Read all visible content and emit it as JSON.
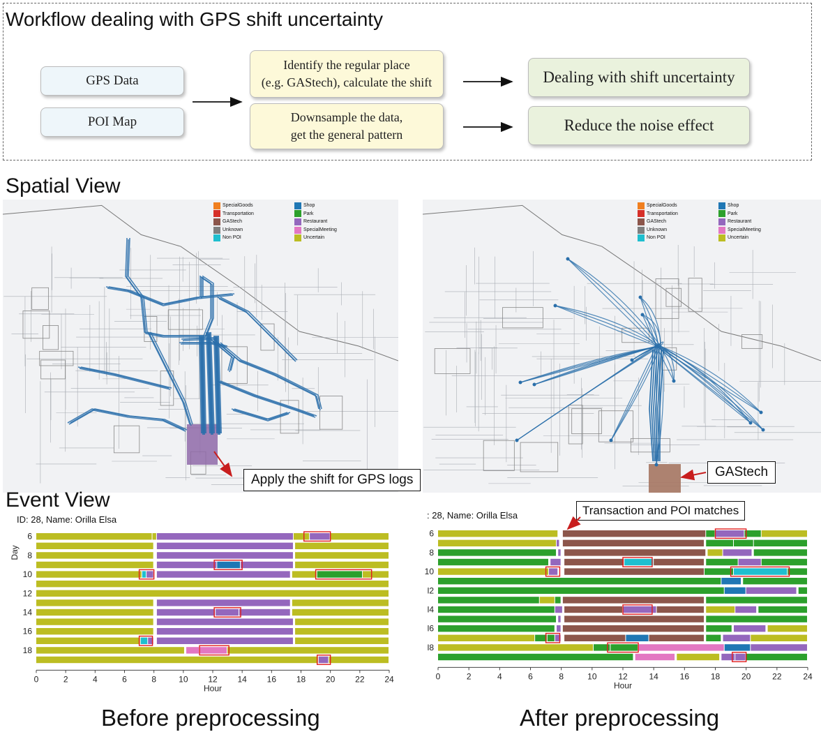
{
  "workflow": {
    "title": "Workflow dealing with GPS shift uncertainty",
    "inputs": [
      "GPS Data",
      "POI Map"
    ],
    "steps": [
      {
        "line1": "Identify the regular place",
        "line2": "(e.g. GAStech), calculate the shift"
      },
      {
        "line1": "Downsample the data,",
        "line2": "get the general pattern"
      }
    ],
    "outputs": [
      "Dealing with shift uncertainty",
      "Reduce the noise effect"
    ]
  },
  "spatial": {
    "title": "Spatial View",
    "legend": {
      "col1": [
        "SpecialGoods",
        "Transportation",
        "GAStech",
        "Unknown",
        "Non POI"
      ],
      "col2": [
        "Shop",
        "Park",
        "Restaurant",
        "SpecialMeeting",
        "Uncertain"
      ],
      "col1_colors": [
        "#f07f1f",
        "#d62f28",
        "#8c564b",
        "#7f7f7f",
        "#1fbfcf"
      ],
      "col2_colors": [
        "#1f77b4",
        "#2ca02c",
        "#9467bd",
        "#e377c2",
        "#bcbd22"
      ]
    },
    "callout_left": "Apply the shift for GPS logs",
    "callout_right": "GAStech"
  },
  "event": {
    "title": "Event View",
    "id_left": "ID: 28, Name: Orilla Elsa",
    "id_right": ": 28, Name: Orilla Elsa",
    "annotation": "Transaction and POI matches",
    "ylabel": "Day",
    "xlabel": "Hour",
    "x_ticks": [
      "0",
      "2",
      "4",
      "6",
      "8",
      "10",
      "12",
      "14",
      "16",
      "18",
      "20",
      "22",
      "24"
    ],
    "y_ticks_left": [
      "6",
      "8",
      "10",
      "12",
      "14",
      "16",
      "18"
    ],
    "y_ticks_right": [
      "6",
      "8",
      "10",
      "l2",
      "l4",
      "l6",
      "l8"
    ],
    "caption_left": "Before preprocessing",
    "caption_right": "After preprocessing"
  },
  "chart_data": [
    {
      "type": "bar",
      "title": "Before preprocessing",
      "xlabel": "Hour",
      "ylabel": "Day",
      "xlim": [
        0,
        24
      ],
      "colors": {
        "U": "#bcbd22",
        "R": "#9467bd",
        "G": "#2ca02c",
        "S": "#1f77b4",
        "T": "#1fbfcf",
        "M": "#e377c2",
        "A": "#8c564b"
      },
      "days": [
        {
          "day": 6,
          "segments": [
            [
              0,
              7.9,
              "U"
            ],
            [
              7.9,
              8.2,
              "U"
            ],
            [
              8.2,
              17.5,
              "R"
            ],
            [
              17.5,
              18.6,
              "U"
            ],
            [
              18.6,
              20,
              "R"
            ],
            [
              20,
              24,
              "U"
            ]
          ],
          "highlights": [
            [
              18.2,
              20
            ]
          ]
        },
        {
          "day": 7,
          "segments": [
            [
              0,
              8,
              "U"
            ],
            [
              8.2,
              17.5,
              "R"
            ],
            [
              17.6,
              24,
              "U"
            ]
          ],
          "highlights": []
        },
        {
          "day": 8,
          "segments": [
            [
              0,
              8,
              "U"
            ],
            [
              8.2,
              17.5,
              "R"
            ],
            [
              17.6,
              24,
              "U"
            ]
          ],
          "highlights": []
        },
        {
          "day": 9,
          "segments": [
            [
              0,
              8,
              "U"
            ],
            [
              8.2,
              12.3,
              "R"
            ],
            [
              12.3,
              13.9,
              "S"
            ],
            [
              13.9,
              17.5,
              "R"
            ],
            [
              17.6,
              24,
              "U"
            ]
          ],
          "highlights": [
            [
              12.1,
              14
            ]
          ]
        },
        {
          "day": 10,
          "segments": [
            [
              0,
              7.2,
              "U"
            ],
            [
              7.2,
              7.5,
              "T"
            ],
            [
              7.5,
              8,
              "R"
            ],
            [
              8.2,
              17.3,
              "R"
            ],
            [
              17.4,
              19.1,
              "U"
            ],
            [
              19.1,
              22.2,
              "G"
            ],
            [
              22.2,
              24,
              "U"
            ]
          ],
          "highlights": [
            [
              7,
              8
            ],
            [
              19,
              22.8
            ]
          ]
        },
        {
          "day": 11,
          "segments": [
            [
              0,
              24,
              "U"
            ]
          ],
          "highlights": []
        },
        {
          "day": 12,
          "segments": [
            [
              0,
              24,
              "U"
            ]
          ],
          "highlights": []
        },
        {
          "day": 13,
          "segments": [
            [
              0,
              8,
              "U"
            ],
            [
              8.2,
              17.3,
              "R"
            ],
            [
              17.4,
              24,
              "U"
            ]
          ],
          "highlights": []
        },
        {
          "day": 14,
          "segments": [
            [
              0,
              8,
              "U"
            ],
            [
              8.2,
              12.2,
              "R"
            ],
            [
              12.2,
              13.8,
              "R"
            ],
            [
              13.8,
              17.3,
              "R"
            ],
            [
              17.4,
              24,
              "U"
            ]
          ],
          "highlights": [
            [
              12.1,
              13.9
            ]
          ]
        },
        {
          "day": 15,
          "segments": [
            [
              0,
              8,
              "U"
            ],
            [
              8.2,
              17.5,
              "R"
            ],
            [
              17.6,
              24,
              "U"
            ]
          ],
          "highlights": []
        },
        {
          "day": 16,
          "segments": [
            [
              0,
              8,
              "U"
            ],
            [
              8.2,
              17.5,
              "R"
            ],
            [
              17.6,
              24,
              "U"
            ]
          ],
          "highlights": []
        },
        {
          "day": 17,
          "segments": [
            [
              0,
              7.1,
              "U"
            ],
            [
              7.1,
              7.6,
              "T"
            ],
            [
              7.6,
              8,
              "R"
            ],
            [
              8.2,
              17.5,
              "R"
            ],
            [
              17.6,
              24,
              "U"
            ]
          ],
          "highlights": [
            [
              7,
              7.9
            ]
          ]
        },
        {
          "day": 18,
          "segments": [
            [
              0,
              10.1,
              "U"
            ],
            [
              10.2,
              11.1,
              "M"
            ],
            [
              11.1,
              13,
              "M"
            ],
            [
              13,
              24,
              "U"
            ]
          ],
          "highlights": [
            [
              11.1,
              13.1
            ]
          ]
        },
        {
          "day": 19,
          "segments": [
            [
              0,
              19.2,
              "U"
            ],
            [
              19.2,
              19.9,
              "R"
            ],
            [
              19.9,
              24,
              "U"
            ]
          ],
          "highlights": [
            [
              19.1,
              20
            ]
          ]
        }
      ]
    },
    {
      "type": "bar",
      "title": "After preprocessing",
      "xlabel": "Hour",
      "ylabel": "Day",
      "xlim": [
        0,
        24
      ],
      "colors": {
        "U": "#bcbd22",
        "R": "#9467bd",
        "G": "#2ca02c",
        "S": "#1f77b4",
        "T": "#1fbfcf",
        "M": "#e377c2",
        "A": "#8c564b"
      },
      "days": [
        {
          "day": 6,
          "segments": [
            [
              0,
              7.8,
              "U"
            ],
            [
              8.1,
              17.4,
              "A"
            ],
            [
              17.4,
              18,
              "G"
            ],
            [
              18,
              19.9,
              "R"
            ],
            [
              19.9,
              21,
              "G"
            ],
            [
              21,
              24,
              "U"
            ]
          ],
          "highlights": [
            [
              18,
              20
            ]
          ]
        },
        {
          "day": 7,
          "segments": [
            [
              0,
              7.7,
              "U"
            ],
            [
              7.7,
              7.9,
              "R"
            ],
            [
              8.1,
              17.3,
              "A"
            ],
            [
              17.4,
              19.2,
              "G"
            ],
            [
              19.2,
              20.5,
              "G"
            ],
            [
              20.5,
              24,
              "G"
            ]
          ],
          "highlights": []
        },
        {
          "day": 8,
          "segments": [
            [
              0,
              7.7,
              "G"
            ],
            [
              7.8,
              8,
              "R"
            ],
            [
              8.2,
              17.4,
              "A"
            ],
            [
              17.5,
              18.5,
              "U"
            ],
            [
              18.5,
              20.4,
              "R"
            ],
            [
              20.5,
              24,
              "G"
            ]
          ],
          "highlights": []
        },
        {
          "day": 9,
          "segments": [
            [
              0,
              7.2,
              "G"
            ],
            [
              7.3,
              8,
              "R"
            ],
            [
              8.2,
              12.1,
              "A"
            ],
            [
              12.1,
              14,
              "T"
            ],
            [
              14,
              17.3,
              "A"
            ],
            [
              17.4,
              19.5,
              "G"
            ],
            [
              19.5,
              21,
              "R"
            ],
            [
              21,
              24,
              "G"
            ]
          ],
          "highlights": [
            [
              12,
              13.9
            ]
          ]
        },
        {
          "day": 10,
          "segments": [
            [
              0,
              7.2,
              "U"
            ],
            [
              7.2,
              7.8,
              "R"
            ],
            [
              8.2,
              17.3,
              "A"
            ],
            [
              17.3,
              19.2,
              "G"
            ],
            [
              19.2,
              22.7,
              "T"
            ],
            [
              22.7,
              24,
              "G"
            ]
          ],
          "highlights": [
            [
              7,
              7.9
            ],
            [
              19,
              22.8
            ]
          ]
        },
        {
          "day": 11,
          "segments": [
            [
              0,
              18.4,
              "G"
            ],
            [
              18.4,
              19.7,
              "S"
            ],
            [
              19.8,
              24,
              "G"
            ]
          ],
          "highlights": []
        },
        {
          "day": 12,
          "segments": [
            [
              0,
              18.6,
              "G"
            ],
            [
              18.6,
              20,
              "S"
            ],
            [
              20,
              23.3,
              "R"
            ],
            [
              23.4,
              24,
              "G"
            ]
          ],
          "highlights": []
        },
        {
          "day": 13,
          "segments": [
            [
              0,
              6.6,
              "G"
            ],
            [
              6.6,
              7.6,
              "U"
            ],
            [
              7.6,
              8,
              "G"
            ],
            [
              8.1,
              17.3,
              "A"
            ],
            [
              17.4,
              24,
              "G"
            ]
          ],
          "highlights": []
        },
        {
          "day": 14,
          "segments": [
            [
              0,
              7.6,
              "G"
            ],
            [
              7.6,
              8.1,
              "R"
            ],
            [
              8.2,
              12,
              "A"
            ],
            [
              12,
              14.2,
              "R"
            ],
            [
              14.2,
              17.3,
              "A"
            ],
            [
              17.4,
              19.3,
              "U"
            ],
            [
              19.3,
              20.7,
              "R"
            ],
            [
              20.8,
              24,
              "G"
            ]
          ],
          "highlights": [
            [
              12,
              13.9
            ]
          ]
        },
        {
          "day": 15,
          "segments": [
            [
              0,
              7.7,
              "G"
            ],
            [
              7.8,
              8,
              "R"
            ],
            [
              8.2,
              17.3,
              "A"
            ],
            [
              17.4,
              24,
              "G"
            ]
          ],
          "highlights": []
        },
        {
          "day": 16,
          "segments": [
            [
              0,
              7.6,
              "G"
            ],
            [
              7.7,
              8,
              "R"
            ],
            [
              8.1,
              17.3,
              "A"
            ],
            [
              17.4,
              19.1,
              "G"
            ],
            [
              19.2,
              21.3,
              "R"
            ],
            [
              21.4,
              24,
              "U"
            ]
          ],
          "highlights": []
        },
        {
          "day": 17,
          "segments": [
            [
              0,
              6.3,
              "U"
            ],
            [
              6.3,
              7.1,
              "G"
            ],
            [
              7.1,
              7.6,
              "G"
            ],
            [
              7.6,
              8,
              "R"
            ],
            [
              8.2,
              12.2,
              "A"
            ],
            [
              12.2,
              13.7,
              "S"
            ],
            [
              13.7,
              17.3,
              "A"
            ],
            [
              17.4,
              18.4,
              "G"
            ],
            [
              18.5,
              20.3,
              "R"
            ],
            [
              20.3,
              24,
              "U"
            ]
          ],
          "highlights": [
            [
              7,
              7.9
            ]
          ]
        },
        {
          "day": 18,
          "segments": [
            [
              0,
              10.1,
              "U"
            ],
            [
              10.1,
              11.2,
              "G"
            ],
            [
              11.2,
              13,
              "G"
            ],
            [
              13,
              18.6,
              "M"
            ],
            [
              18.6,
              20.3,
              "S"
            ],
            [
              20.3,
              24,
              "R"
            ]
          ],
          "highlights": [
            [
              11,
              13
            ]
          ]
        },
        {
          "day": 19,
          "segments": [
            [
              0,
              12.7,
              "G"
            ],
            [
              12.8,
              15.4,
              "M"
            ],
            [
              15.5,
              18.3,
              "U"
            ],
            [
              18.4,
              19.3,
              "R"
            ],
            [
              19.3,
              20,
              "R"
            ],
            [
              20,
              24,
              "G"
            ]
          ],
          "highlights": [
            [
              19.1,
              20
            ]
          ]
        }
      ]
    }
  ]
}
